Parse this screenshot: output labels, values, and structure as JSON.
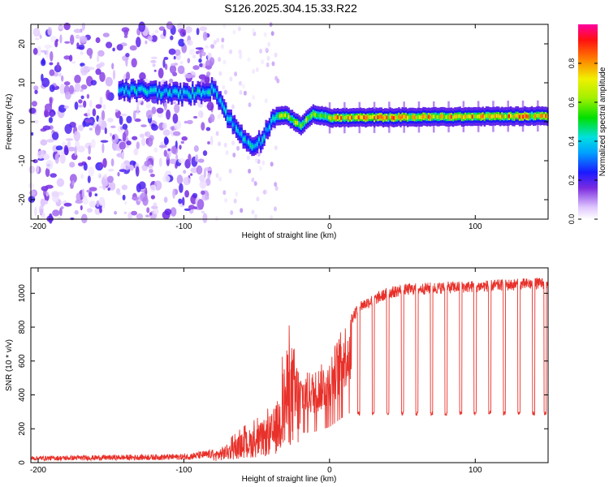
{
  "title": "S126.2025.304.15.33.R22",
  "colorbar": {
    "label": "Normalized spectral amplitude",
    "ticks": [
      "0.0",
      "0.2",
      "0.4",
      "0.6",
      "0.8"
    ]
  },
  "chart_data": [
    {
      "type": "heatmap",
      "xlabel": "Height of straight line (km)",
      "ylabel": "Frequency (Hz)",
      "xlim": [
        -205,
        150
      ],
      "ylim": [
        -25,
        25
      ],
      "xticks": [
        "-200",
        "-100",
        "0",
        "100"
      ],
      "yticks": [
        "20",
        "10",
        "0",
        "-10",
        "-20"
      ],
      "ridge": {
        "description_points": [
          [
            -143,
            8
          ],
          [
            -130,
            8
          ],
          [
            -115,
            7.5
          ],
          [
            -100,
            7
          ],
          [
            -90,
            7.5
          ],
          [
            -80,
            8.5
          ],
          [
            -75,
            5
          ],
          [
            -70,
            1
          ],
          [
            -62,
            -3
          ],
          [
            -55,
            -6
          ],
          [
            -48,
            -5
          ],
          [
            -42,
            -1
          ],
          [
            -38,
            1.5
          ],
          [
            -30,
            1.5
          ],
          [
            -20,
            -1
          ],
          [
            -12,
            2
          ],
          [
            0,
            1
          ],
          [
            150,
            1.5
          ]
        ]
      },
      "colorscale_range": [
        0,
        1
      ]
    },
    {
      "type": "line",
      "xlabel": "Height of straight line (km)",
      "ylabel": "SNR (10 * v/v)",
      "xlim": [
        -205,
        150
      ],
      "ylim": [
        0,
        1150
      ],
      "xticks": [
        "-200",
        "-100",
        "0",
        "100"
      ],
      "yticks": [
        "0",
        "200",
        "400",
        "600",
        "800",
        "1000"
      ],
      "series": [
        {
          "name": "SNR",
          "color": "#e8312a",
          "envelope_x": [
            -205,
            -150,
            -100,
            -80,
            -70,
            -60,
            -50,
            -40,
            -35,
            -30,
            -25,
            -20,
            -10,
            0,
            10,
            20,
            30,
            40,
            50,
            70,
            100,
            150
          ],
          "envelope_y": [
            30,
            35,
            40,
            60,
            100,
            160,
            200,
            260,
            350,
            600,
            650,
            500,
            520,
            600,
            780,
            920,
            960,
            1000,
            1020,
            1030,
            1040,
            1060
          ],
          "dropouts_x": [
            12,
            20,
            30,
            40,
            50,
            60,
            70,
            80,
            90,
            100,
            110,
            120,
            130,
            140,
            148
          ],
          "dropout_level": 290
        }
      ]
    }
  ]
}
